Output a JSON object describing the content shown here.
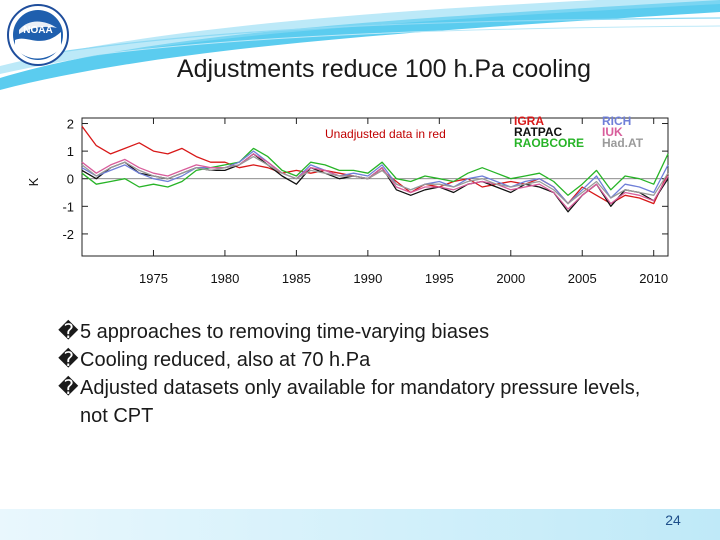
{
  "slide": {
    "title": "Adjustments reduce 100 h.Pa cooling",
    "page_number": "24",
    "logo": {
      "icon": "noaa-logo",
      "text": "NOAA"
    },
    "colors": {
      "accent": "#3ec3ec",
      "footer": "#d2f0fa",
      "page_number": "#1e4f8a"
    }
  },
  "bullets": [
    {
      "glyph": "�",
      "text": " 5 approaches to removing time-varying biases"
    },
    {
      "glyph": "�",
      "text": "Cooling reduced, also at 70 h.Pa"
    },
    {
      "glyph": "�",
      "text": "Adjusted datasets only available for mandatory pressure levels, not CPT"
    }
  ],
  "chart_data": {
    "type": "line",
    "title": "",
    "xlabel": "",
    "ylabel": "K",
    "annotation": "Unadjusted data in red",
    "xlim": [
      1970,
      2011
    ],
    "ylim": [
      -2.8,
      2.2
    ],
    "x_ticks": [
      1975,
      1980,
      1985,
      1990,
      1995,
      2000,
      2005,
      2010
    ],
    "y_ticks": [
      2,
      1,
      0,
      -1,
      -2
    ],
    "grid": false,
    "legend_placement": "top-right",
    "legend": [
      {
        "label": "IGRA",
        "color": "#d81818"
      },
      {
        "label": "RICH",
        "color": "#6f7fd8"
      },
      {
        "label": "RATPAC",
        "color": "#111111"
      },
      {
        "label": "IUK",
        "color": "#d85d9b"
      },
      {
        "label": "RAOBCORE",
        "color": "#27b427"
      },
      {
        "label": "Had.AT",
        "color": "#9a9a9a"
      }
    ],
    "series": [
      {
        "name": "IGRA",
        "color": "#d81818",
        "x": [
          1970,
          1971,
          1972,
          1973,
          1974,
          1975,
          1976,
          1977,
          1978,
          1979,
          1980,
          1981,
          1982,
          1983,
          1984,
          1985,
          1986,
          1987,
          1988,
          1989,
          1990,
          1991,
          1992,
          1993,
          1994,
          1995,
          1996,
          1997,
          1998,
          1999,
          2000,
          2001,
          2002,
          2003,
          2004,
          2005,
          2006,
          2007,
          2008,
          2009,
          2010,
          2011
        ],
        "y": [
          1.9,
          1.2,
          0.9,
          1.1,
          1.3,
          1.0,
          0.9,
          1.1,
          0.8,
          0.6,
          0.6,
          0.4,
          0.5,
          0.4,
          0.2,
          0.3,
          0.2,
          0.3,
          0.2,
          0.1,
          0.0,
          0.3,
          -0.1,
          -0.5,
          -0.2,
          -0.3,
          -0.1,
          0.0,
          -0.3,
          -0.2,
          -0.1,
          -0.2,
          0.0,
          -0.3,
          -0.9,
          -0.3,
          -0.6,
          -0.9,
          -0.6,
          -0.7,
          -0.9,
          0.2
        ]
      },
      {
        "name": "RATPAC",
        "color": "#111111",
        "x": [
          1970,
          1971,
          1972,
          1973,
          1974,
          1975,
          1976,
          1977,
          1978,
          1979,
          1980,
          1981,
          1982,
          1983,
          1984,
          1985,
          1986,
          1987,
          1988,
          1989,
          1990,
          1991,
          1992,
          1993,
          1994,
          1995,
          1996,
          1997,
          1998,
          1999,
          2000,
          2001,
          2002,
          2003,
          2004,
          2005,
          2006,
          2007,
          2008,
          2009,
          2010,
          2011
        ],
        "y": [
          0.3,
          0.0,
          0.4,
          0.6,
          0.2,
          0.1,
          0.0,
          0.2,
          0.4,
          0.3,
          0.3,
          0.5,
          0.9,
          0.5,
          0.1,
          -0.2,
          0.4,
          0.2,
          0.0,
          0.1,
          0.0,
          0.4,
          -0.4,
          -0.6,
          -0.4,
          -0.3,
          -0.5,
          -0.2,
          -0.1,
          -0.3,
          -0.5,
          -0.2,
          -0.3,
          -0.5,
          -1.2,
          -0.6,
          -0.2,
          -1.0,
          -0.4,
          -0.5,
          -0.8,
          0.0
        ]
      },
      {
        "name": "RAOBCORE",
        "color": "#27b427",
        "x": [
          1970,
          1971,
          1972,
          1973,
          1974,
          1975,
          1976,
          1977,
          1978,
          1979,
          1980,
          1981,
          1982,
          1983,
          1984,
          1985,
          1986,
          1987,
          1988,
          1989,
          1990,
          1991,
          1992,
          1993,
          1994,
          1995,
          1996,
          1997,
          1998,
          1999,
          2000,
          2001,
          2002,
          2003,
          2004,
          2005,
          2006,
          2007,
          2008,
          2009,
          2010,
          2011
        ],
        "y": [
          0.2,
          -0.2,
          -0.1,
          0.0,
          -0.3,
          -0.2,
          -0.3,
          -0.1,
          0.3,
          0.4,
          0.5,
          0.6,
          1.1,
          0.8,
          0.3,
          0.1,
          0.6,
          0.5,
          0.3,
          0.3,
          0.2,
          0.6,
          0.0,
          -0.1,
          0.1,
          0.0,
          -0.1,
          0.2,
          0.4,
          0.2,
          0.0,
          0.1,
          0.2,
          -0.1,
          -0.6,
          -0.2,
          0.3,
          -0.4,
          0.1,
          0.0,
          -0.2,
          0.9
        ]
      },
      {
        "name": "RICH",
        "color": "#6f7fd8",
        "x": [
          1970,
          1971,
          1972,
          1973,
          1974,
          1975,
          1976,
          1977,
          1978,
          1979,
          1980,
          1981,
          1982,
          1983,
          1984,
          1985,
          1986,
          1987,
          1988,
          1989,
          1990,
          1991,
          1992,
          1993,
          1994,
          1995,
          1996,
          1997,
          1998,
          1999,
          2000,
          2001,
          2002,
          2003,
          2004,
          2005,
          2006,
          2007,
          2008,
          2009,
          2010,
          2011
        ],
        "y": [
          0.4,
          0.1,
          0.3,
          0.5,
          0.2,
          0.0,
          -0.1,
          0.1,
          0.4,
          0.4,
          0.4,
          0.6,
          1.0,
          0.6,
          0.2,
          0.0,
          0.5,
          0.3,
          0.1,
          0.2,
          0.1,
          0.5,
          -0.2,
          -0.4,
          -0.2,
          -0.1,
          -0.3,
          0.0,
          0.1,
          -0.1,
          -0.3,
          -0.1,
          0.0,
          -0.3,
          -0.9,
          -0.4,
          0.1,
          -0.7,
          -0.2,
          -0.3,
          -0.5,
          0.5
        ]
      },
      {
        "name": "IUK",
        "color": "#d85d9b",
        "x": [
          1970,
          1971,
          1972,
          1973,
          1974,
          1975,
          1976,
          1977,
          1978,
          1979,
          1980,
          1981,
          1982,
          1983,
          1984,
          1985,
          1986,
          1987,
          1988,
          1989,
          1990,
          1991,
          1992,
          1993,
          1994,
          1995,
          1996,
          1997,
          1998,
          1999,
          2000,
          2001,
          2002,
          2003,
          2004,
          2005,
          2006,
          2007,
          2008,
          2009,
          2010,
          2011
        ],
        "y": [
          0.6,
          0.2,
          0.5,
          0.7,
          0.4,
          0.2,
          0.1,
          0.3,
          0.5,
          0.4,
          0.4,
          0.5,
          0.9,
          0.6,
          0.2,
          0.0,
          0.4,
          0.3,
          0.1,
          0.1,
          0.0,
          0.4,
          -0.3,
          -0.5,
          -0.3,
          -0.3,
          -0.4,
          -0.2,
          -0.1,
          -0.2,
          -0.4,
          -0.3,
          -0.2,
          -0.5,
          -1.1,
          -0.6,
          -0.2,
          -0.9,
          -0.5,
          -0.6,
          -0.8,
          0.1
        ]
      },
      {
        "name": "Had.AT",
        "color": "#9a9a9a",
        "x": [
          1970,
          1971,
          1972,
          1973,
          1974,
          1975,
          1976,
          1977,
          1978,
          1979,
          1980,
          1981,
          1982,
          1983,
          1984,
          1985,
          1986,
          1987,
          1988,
          1989,
          1990,
          1991,
          1992,
          1993,
          1994,
          1995,
          1996,
          1997,
          1998,
          1999,
          2000,
          2001,
          2002,
          2003,
          2004,
          2005,
          2006,
          2007,
          2008,
          2009,
          2010,
          2011
        ],
        "y": [
          0.5,
          0.1,
          0.4,
          0.6,
          0.3,
          0.1,
          0.0,
          0.2,
          0.4,
          0.3,
          0.4,
          0.5,
          0.8,
          0.5,
          0.2,
          0.0,
          0.3,
          0.2,
          0.1,
          0.1,
          0.0,
          0.3,
          -0.2,
          -0.4,
          -0.2,
          -0.2,
          -0.3,
          -0.1,
          0.0,
          -0.2,
          -0.3,
          -0.2,
          -0.1,
          -0.4,
          -0.9,
          -0.5,
          -0.1,
          -0.7,
          -0.4,
          -0.5,
          -0.6,
          0.2
        ]
      }
    ]
  }
}
